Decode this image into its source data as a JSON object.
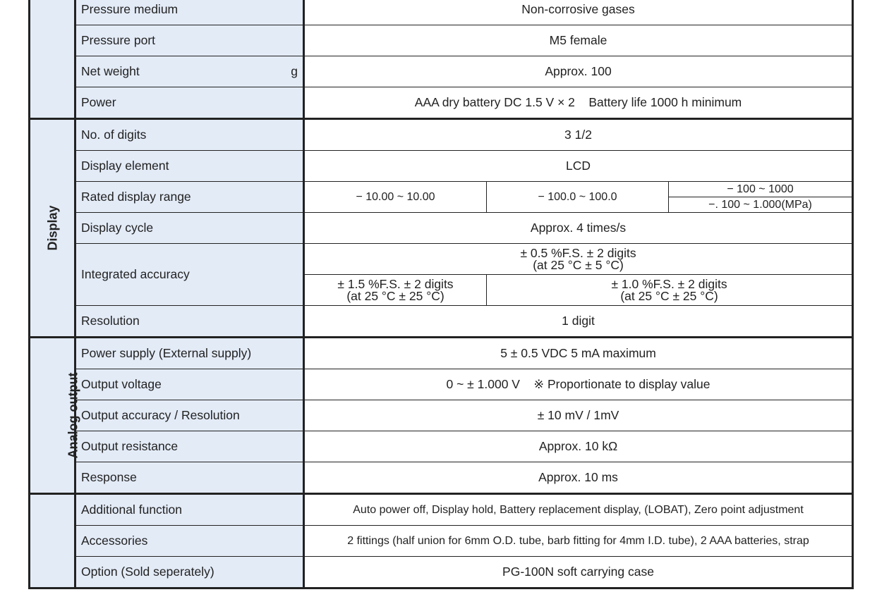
{
  "groups": {
    "display": "Display",
    "analog": "Analog output"
  },
  "rows": {
    "medium": {
      "label": "Pressure medium",
      "value": "Non-corrosive gases"
    },
    "port": {
      "label": "Pressure port",
      "value": "M5 female"
    },
    "weight": {
      "label": "Net weight",
      "unit": "g",
      "value": "Approx. 100"
    },
    "power": {
      "label": "Power",
      "value": "AAA dry battery DC 1.5 V × 2    Battery life 1000 h minimum"
    },
    "digits": {
      "label": "No. of digits",
      "value": "3 1/2"
    },
    "element": {
      "label": "Display element",
      "value": "LCD"
    },
    "range": {
      "label": "Rated display range",
      "values": [
        "− 10.00 ~ 10.00",
        "− 100.0 ~ 100.0",
        "− 100 ~ 1000",
        "−. 100 ~ 1.000(MPa)"
      ]
    },
    "cycle": {
      "label": "Display cycle",
      "value": "Approx. 4 times/s"
    },
    "accuracy": {
      "label": "Integrated accuracy",
      "top": [
        "±  0.5 %F.S. ± 2 digits",
        "(at 25 °C ± 5 °C)"
      ],
      "left": [
        "± 1.5 %F.S. ± 2 digits",
        "(at 25 °C ± 25 °C)"
      ],
      "right": [
        "± 1.0 %F.S. ± 2 digits",
        "(at 25 °C ± 25 °C)"
      ]
    },
    "resolution": {
      "label": "Resolution",
      "value": "1 digit"
    },
    "supply": {
      "label": "Power supply (External supply)",
      "value": "5 ± 0.5 VDC 5 mA maximum"
    },
    "voltage": {
      "label": "Output voltage",
      "value": "0 ~ ± 1.000 V    ※ Proportionate to display value"
    },
    "outacc": {
      "label": "Output accuracy / Resolution",
      "value": "± 10 mV / 1mV"
    },
    "resist": {
      "label": "Output resistance",
      "value": "Approx. 10 kΩ"
    },
    "response": {
      "label": "Response",
      "value": "Approx. 10 ms"
    },
    "additional": {
      "label": "Additional function",
      "value": "Auto power off, Display hold, Battery replacement display, (LOBAT), Zero point adjustment"
    },
    "accessories": {
      "label": "Accessories",
      "value": "2 fittings (half union for 6mm O.D. tube, barb fitting for 4mm I.D. tube), 2 AAA batteries, strap"
    },
    "option": {
      "label": "Option (Sold seperately)",
      "value": "PG-100N soft carrying case"
    }
  }
}
